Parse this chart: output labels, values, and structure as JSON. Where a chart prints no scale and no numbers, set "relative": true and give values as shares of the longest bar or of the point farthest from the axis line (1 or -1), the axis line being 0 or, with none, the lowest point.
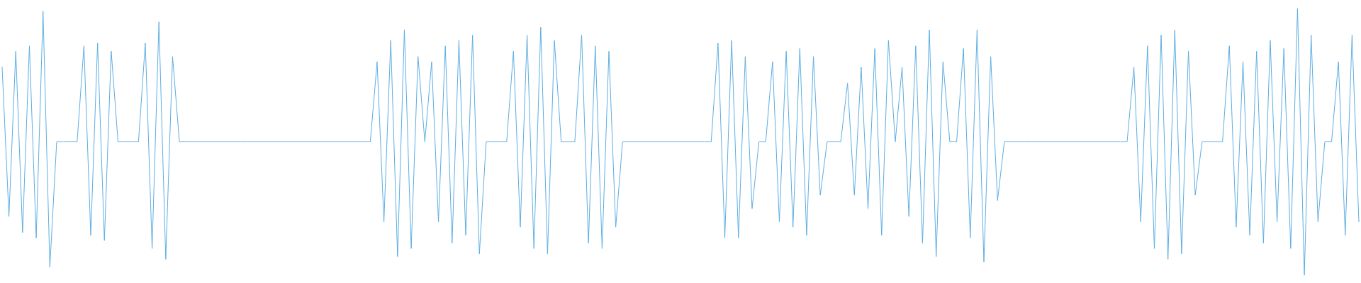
{
  "chart_data": {
    "type": "line",
    "relative": true,
    "marker": "none",
    "line_style": "solid",
    "categories": [
      null,
      null,
      null,
      null,
      null,
      null,
      null,
      null,
      null,
      null,
      null,
      null,
      null,
      null,
      null,
      null,
      null,
      null,
      null,
      null,
      null,
      null,
      null,
      null,
      null,
      null,
      null,
      null,
      null,
      null,
      null,
      null,
      null,
      null,
      null,
      null,
      null,
      null,
      null,
      null,
      null,
      null,
      null,
      null,
      null,
      null,
      null,
      null,
      null,
      null,
      null,
      null,
      null,
      null,
      null,
      null,
      null,
      null,
      null,
      null,
      null,
      null,
      null,
      null,
      null,
      null,
      null,
      null,
      null,
      null,
      null,
      null,
      null,
      null,
      null,
      null,
      null,
      null,
      null,
      null,
      null,
      null,
      null,
      null,
      null,
      null,
      null,
      null,
      null,
      null,
      null,
      null,
      null,
      null,
      null,
      null,
      null,
      null,
      null,
      null,
      null,
      null,
      null,
      null,
      null,
      null,
      null,
      null,
      null,
      null,
      null,
      null,
      null,
      null,
      null,
      null,
      null,
      null,
      null,
      null,
      null,
      null,
      null,
      null,
      null,
      null,
      null,
      null,
      null,
      null,
      null,
      null,
      null,
      null,
      null,
      null,
      null,
      null,
      null,
      null,
      null,
      null,
      null,
      null,
      null,
      null,
      null,
      null,
      null,
      null,
      null,
      null,
      null,
      null,
      null,
      null,
      null,
      null,
      null,
      null,
      null,
      null,
      null,
      null,
      null,
      null,
      null,
      null,
      null,
      null,
      null,
      null,
      null,
      null,
      null,
      null,
      null,
      null,
      null,
      null,
      null,
      null,
      null,
      null,
      null,
      null,
      null,
      null,
      null,
      null,
      null,
      null,
      null,
      null,
      null,
      null,
      null,
      null,
      null,
      null
    ],
    "series": [
      {
        "color": "#5dade2",
        "values": [
          0.78,
          0.22,
          0.84,
          0.16,
          0.86,
          0.14,
          0.99,
          0.03,
          0.5,
          0.5,
          0.5,
          0.5,
          0.86,
          0.15,
          0.87,
          0.13,
          0.84,
          0.5,
          0.5,
          0.5,
          0.5,
          0.87,
          0.1,
          0.95,
          0.06,
          0.82,
          0.5,
          0.5,
          0.5,
          0.5,
          0.5,
          0.5,
          0.5,
          0.5,
          0.5,
          0.5,
          0.5,
          0.5,
          0.5,
          0.5,
          0.5,
          0.5,
          0.5,
          0.5,
          0.5,
          0.5,
          0.5,
          0.5,
          0.5,
          0.5,
          0.5,
          0.5,
          0.5,
          0.5,
          0.5,
          0.8,
          0.2,
          0.88,
          0.07,
          0.92,
          0.1,
          0.82,
          0.5,
          0.8,
          0.2,
          0.86,
          0.12,
          0.88,
          0.15,
          0.9,
          0.08,
          0.5,
          0.5,
          0.5,
          0.5,
          0.84,
          0.18,
          0.9,
          0.1,
          0.93,
          0.08,
          0.88,
          0.5,
          0.5,
          0.5,
          0.9,
          0.12,
          0.86,
          0.1,
          0.84,
          0.18,
          0.5,
          0.5,
          0.5,
          0.5,
          0.5,
          0.5,
          0.5,
          0.5,
          0.5,
          0.5,
          0.5,
          0.5,
          0.5,
          0.5,
          0.87,
          0.14,
          0.88,
          0.14,
          0.82,
          0.25,
          0.5,
          0.5,
          0.8,
          0.2,
          0.84,
          0.18,
          0.85,
          0.15,
          0.82,
          0.3,
          0.5,
          0.5,
          0.5,
          0.72,
          0.3,
          0.78,
          0.25,
          0.85,
          0.15,
          0.88,
          0.5,
          0.78,
          0.22,
          0.86,
          0.12,
          0.92,
          0.07,
          0.8,
          0.5,
          0.5,
          0.85,
          0.14,
          0.92,
          0.05,
          0.82,
          0.28,
          0.5,
          0.5,
          0.5,
          0.5,
          0.5,
          0.5,
          0.5,
          0.5,
          0.5,
          0.5,
          0.5,
          0.5,
          0.5,
          0.5,
          0.5,
          0.5,
          0.5,
          0.5,
          0.5,
          0.78,
          0.2,
          0.86,
          0.1,
          0.9,
          0.06,
          0.92,
          0.08,
          0.84,
          0.3,
          0.5,
          0.5,
          0.5,
          0.5,
          0.86,
          0.18,
          0.8,
          0.15,
          0.84,
          0.12,
          0.88,
          0.2,
          0.85,
          0.1,
          1.0,
          0.0,
          0.9,
          0.2,
          0.5,
          0.5,
          0.8,
          0.15,
          0.9,
          0.2
        ]
      }
    ]
  }
}
